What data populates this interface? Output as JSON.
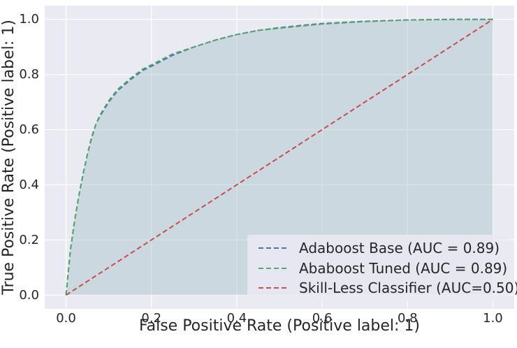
{
  "chart_data": {
    "type": "line",
    "title": "",
    "xlabel": "False Positive Rate (Positive label: 1)",
    "ylabel": "True Positive Rate (Positive label: 1)",
    "xlim": [
      -0.05,
      1.05
    ],
    "ylim": [
      -0.05,
      1.05
    ],
    "xticks": [
      0.0,
      0.2,
      0.4,
      0.6,
      0.8,
      1.0
    ],
    "yticks": [
      0.0,
      0.2,
      0.4,
      0.6,
      0.8,
      1.0
    ],
    "xtick_labels": [
      "0.0",
      "0.2",
      "0.4",
      "0.6",
      "0.8",
      "1.0"
    ],
    "ytick_labels": [
      "0.0",
      "0.2",
      "0.4",
      "0.6",
      "0.8",
      "1.0"
    ],
    "grid": true,
    "legend_position": "lower-right",
    "shaded_area_under_curve": true,
    "series": [
      {
        "name": "Adaboost Base (AUC = 0.89)",
        "color": "#4c72b0",
        "style": "dashed",
        "x": [
          0.0,
          0.005,
          0.01,
          0.02,
          0.03,
          0.04,
          0.05,
          0.06,
          0.07,
          0.08,
          0.1,
          0.12,
          0.15,
          0.18,
          0.2,
          0.25,
          0.3,
          0.35,
          0.4,
          0.45,
          0.5,
          0.55,
          0.6,
          0.7,
          0.8,
          0.9,
          1.0
        ],
        "y": [
          0.0,
          0.08,
          0.16,
          0.27,
          0.36,
          0.44,
          0.51,
          0.57,
          0.62,
          0.65,
          0.7,
          0.74,
          0.78,
          0.815,
          0.83,
          0.87,
          0.9,
          0.925,
          0.945,
          0.96,
          0.97,
          0.978,
          0.985,
          0.993,
          0.998,
          1.0,
          1.0
        ]
      },
      {
        "name": "Ababoost Tuned (AUC = 0.89)",
        "color": "#55a868",
        "style": "dashed",
        "x": [
          0.0,
          0.005,
          0.01,
          0.02,
          0.03,
          0.04,
          0.05,
          0.06,
          0.07,
          0.08,
          0.1,
          0.12,
          0.15,
          0.18,
          0.2,
          0.25,
          0.3,
          0.35,
          0.4,
          0.45,
          0.5,
          0.55,
          0.6,
          0.7,
          0.8,
          0.9,
          1.0
        ],
        "y": [
          0.0,
          0.08,
          0.16,
          0.27,
          0.36,
          0.44,
          0.51,
          0.575,
          0.62,
          0.655,
          0.705,
          0.745,
          0.785,
          0.82,
          0.835,
          0.875,
          0.9,
          0.925,
          0.945,
          0.96,
          0.968,
          0.976,
          0.983,
          0.992,
          0.998,
          1.0,
          1.0
        ]
      },
      {
        "name": "Skill-Less Classifier (AUC=0.50)",
        "color": "#c44e52",
        "style": "dashed",
        "x": [
          0.0,
          1.0
        ],
        "y": [
          0.0,
          1.0
        ]
      }
    ]
  }
}
